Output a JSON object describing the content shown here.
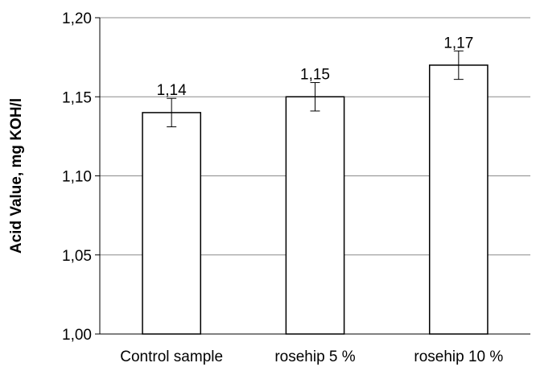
{
  "chart_data": {
    "type": "bar",
    "title": "",
    "xlabel": "",
    "ylabel": "Acid Value, mg KOH/l",
    "categories": [
      "Control sample",
      "rosehip 5 %",
      "rosehip 10 %"
    ],
    "values": [
      1.14,
      1.15,
      1.17
    ],
    "value_labels": [
      "1,14",
      "1,15",
      "1,17"
    ],
    "error": [
      0.009,
      0.009,
      0.009
    ],
    "ylim": [
      1.0,
      1.2
    ],
    "yticks": [
      1.0,
      1.05,
      1.1,
      1.15,
      1.2
    ],
    "ytick_labels": [
      "1,00",
      "1,05",
      "1,10",
      "1,15",
      "1,20"
    ],
    "grid": true,
    "legend": "none",
    "colors": {
      "bar_fill": "#ffffff",
      "bar_stroke": "#000000",
      "grid": "#8c8c8c",
      "axis": "#000000"
    }
  }
}
